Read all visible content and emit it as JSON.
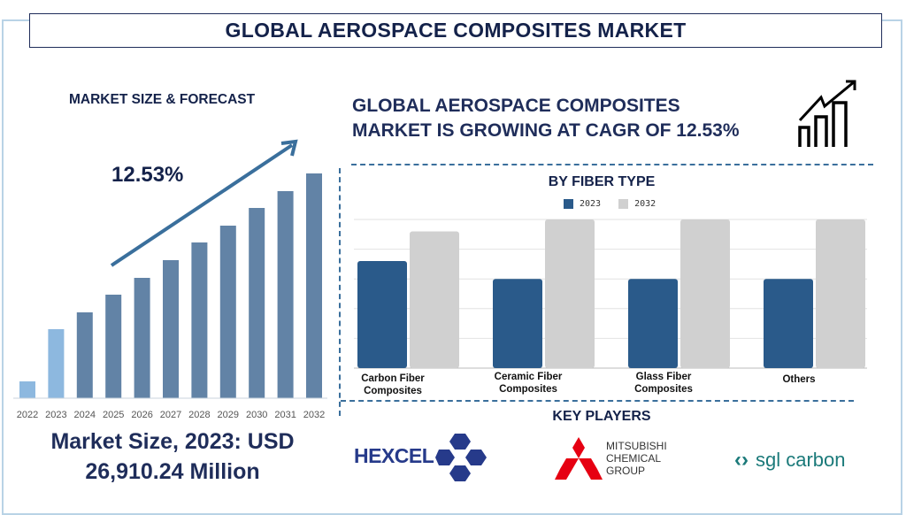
{
  "title": "GLOBAL AEROSPACE COMPOSITES MARKET",
  "left_panel": {
    "heading": "MARKET SIZE & FORECAST",
    "cagr_label": "12.53%",
    "market_size_line1": "Market Size, 2023: USD",
    "market_size_line2": "26,910.24 Million"
  },
  "headline": {
    "line1": "GLOBAL AEROSPACE COMPOSITES",
    "line2": "MARKET IS GROWING AT CAGR OF 12.53%",
    "icon": "growth-chart-arrow-icon"
  },
  "key_players": {
    "heading": "KEY PLAYERS",
    "logos": [
      "HEXCEL",
      "MITSUBISHI CHEMICAL GROUP",
      "sgl carbon"
    ]
  },
  "chart_data": [
    {
      "type": "bar",
      "title": "",
      "categories": [
        "2022",
        "2023",
        "2024",
        "2025",
        "2026",
        "2027",
        "2028",
        "2029",
        "2030",
        "2031",
        "2032"
      ],
      "values": [
        19,
        78,
        97,
        117,
        136,
        156,
        176,
        195,
        215,
        234,
        254
      ],
      "highlighted": [
        "2022",
        "2023"
      ],
      "colors": {
        "highlight": "#8db8df",
        "default": "#6283a6"
      },
      "grid": false,
      "annotation": "12.53%"
    },
    {
      "type": "bar",
      "title": "BY FIBER TYPE",
      "categories": [
        "Carbon Fiber Composites",
        "Ceramic Fiber Composites",
        "Glass Fiber Composites",
        "Others"
      ],
      "series": [
        {
          "name": "2023",
          "values": [
            3.6,
            3.0,
            3.0,
            3.0
          ],
          "color": "#2a5a8a"
        },
        {
          "name": "2032",
          "values": [
            4.6,
            5.0,
            5.0,
            5.0
          ],
          "color": "#d0d0d0"
        }
      ],
      "ylim": [
        0,
        5
      ],
      "grid": true,
      "legend": "top-center"
    }
  ]
}
